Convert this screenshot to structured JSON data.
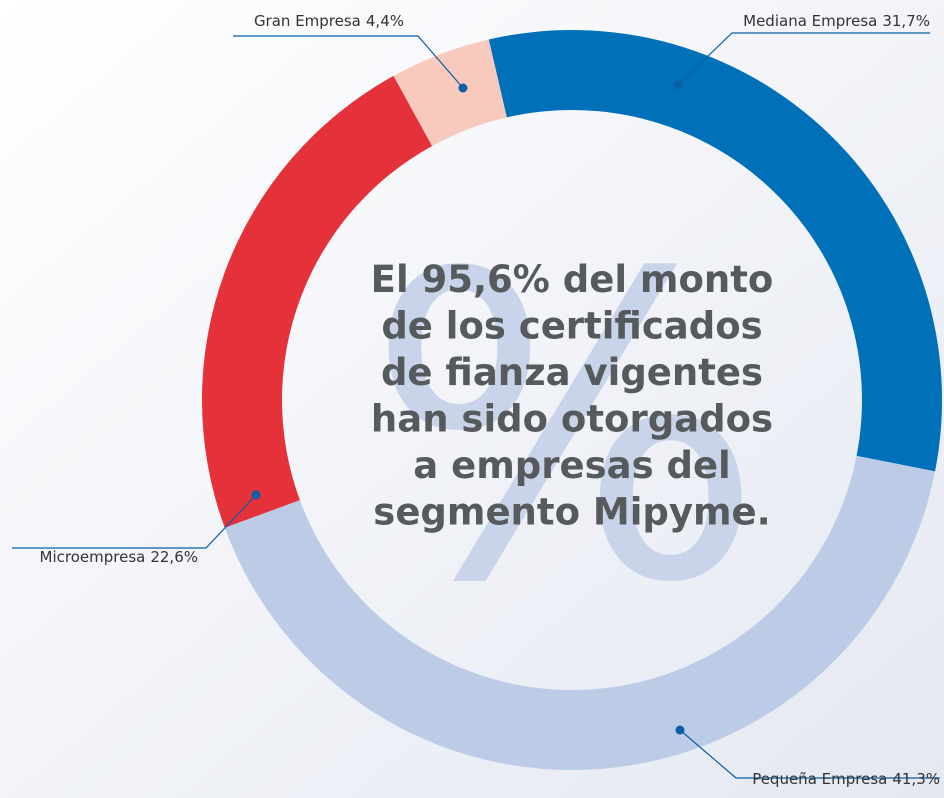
{
  "chart_data": {
    "type": "donut",
    "categories": [
      "Mediana Empresa",
      "Pequeña Empresa",
      "Microempresa",
      "Gran Empresa"
    ],
    "values": [
      31.7,
      41.3,
      22.6,
      4.4
    ],
    "value_labels": [
      "31,7%",
      "41,3%",
      "22,6%",
      "4,4%"
    ],
    "colors": [
      "#0070b8",
      "#bccbe6",
      "#e4313a",
      "#f8c9bd"
    ],
    "watermark": "%",
    "annotation": [
      "El 95,6% del monto",
      "de los certificados",
      "de fianza vigentes",
      "han sido otorgados",
      "a empresas del",
      "segmento Mipyme."
    ]
  }
}
